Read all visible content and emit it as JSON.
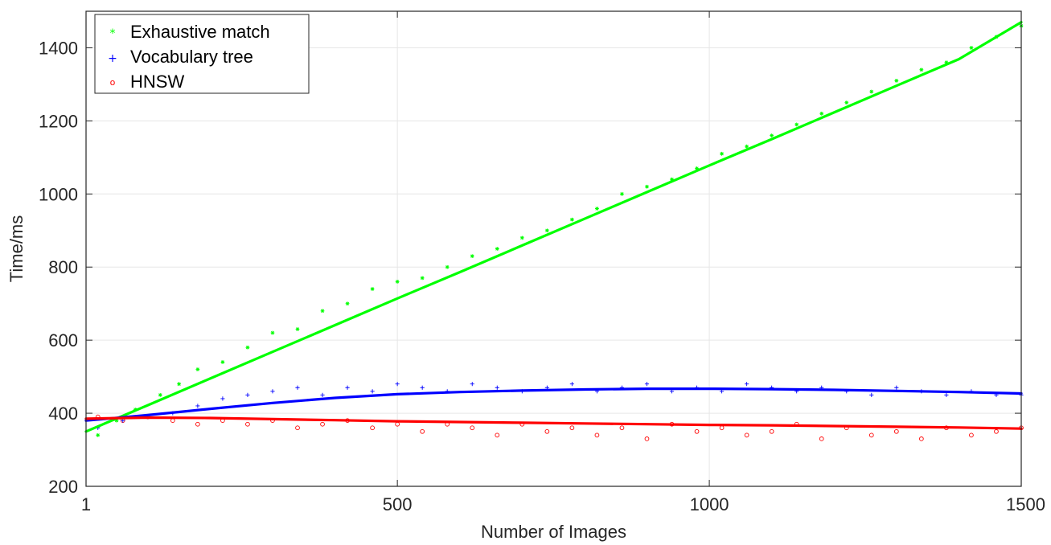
{
  "chart_data": {
    "type": "scatter",
    "title": "",
    "xlabel": "Number of Images",
    "ylabel": "Time/ms",
    "xlim": [
      1,
      1500
    ],
    "ylim": [
      200,
      1500
    ],
    "xticks": [
      1,
      500,
      1000,
      1500
    ],
    "xtick_labels": [
      "1",
      "500",
      "1000",
      "1500"
    ],
    "yticks": [
      200,
      400,
      600,
      800,
      1000,
      1200,
      1400
    ],
    "ytick_labels": [
      "200",
      "400",
      "600",
      "800",
      "1000",
      "1200",
      "1400"
    ],
    "grid": true,
    "legend_position": "top-left",
    "series": [
      {
        "name": "Exhaustive match",
        "marker": "*",
        "color": "#00ff00",
        "trend_color": "#00ff00",
        "trend_x": [
          1,
          100,
          200,
          300,
          400,
          500,
          600,
          700,
          800,
          900,
          1000,
          1100,
          1200,
          1300,
          1400,
          1500
        ],
        "trend_y": [
          350,
          422,
          495,
          568,
          641,
          714,
          786,
          859,
          932,
          1005,
          1078,
          1150,
          1223,
          1296,
          1369,
          1470
        ],
        "points": [
          [
            20,
            340
          ],
          [
            50,
            380
          ],
          [
            80,
            410
          ],
          [
            120,
            450
          ],
          [
            150,
            480
          ],
          [
            180,
            520
          ],
          [
            220,
            540
          ],
          [
            260,
            580
          ],
          [
            300,
            620
          ],
          [
            340,
            630
          ],
          [
            380,
            680
          ],
          [
            420,
            700
          ],
          [
            460,
            740
          ],
          [
            500,
            760
          ],
          [
            540,
            770
          ],
          [
            580,
            800
          ],
          [
            620,
            830
          ],
          [
            660,
            850
          ],
          [
            700,
            880
          ],
          [
            740,
            900
          ],
          [
            780,
            930
          ],
          [
            820,
            960
          ],
          [
            860,
            1000
          ],
          [
            900,
            1020
          ],
          [
            940,
            1040
          ],
          [
            980,
            1070
          ],
          [
            1020,
            1110
          ],
          [
            1060,
            1130
          ],
          [
            1100,
            1160
          ],
          [
            1140,
            1190
          ],
          [
            1180,
            1220
          ],
          [
            1220,
            1250
          ],
          [
            1260,
            1280
          ],
          [
            1300,
            1310
          ],
          [
            1340,
            1340
          ],
          [
            1380,
            1360
          ],
          [
            1420,
            1400
          ],
          [
            1460,
            1430
          ],
          [
            1500,
            1460
          ]
        ]
      },
      {
        "name": "Vocabulary tree",
        "marker": "+",
        "color": "#0000ff",
        "trend_color": "#0000ff",
        "trend_x": [
          1,
          100,
          200,
          300,
          400,
          500,
          600,
          700,
          800,
          900,
          1000,
          1100,
          1200,
          1300,
          1400,
          1500
        ],
        "trend_y": [
          380,
          395,
          412,
          428,
          442,
          452,
          458,
          462,
          465,
          467,
          467,
          466,
          464,
          461,
          458,
          454
        ],
        "points": [
          [
            20,
            360
          ],
          [
            60,
            380
          ],
          [
            100,
            390
          ],
          [
            140,
            400
          ],
          [
            180,
            420
          ],
          [
            220,
            440
          ],
          [
            260,
            450
          ],
          [
            300,
            460
          ],
          [
            340,
            470
          ],
          [
            380,
            450
          ],
          [
            420,
            470
          ],
          [
            460,
            460
          ],
          [
            500,
            480
          ],
          [
            540,
            470
          ],
          [
            580,
            460
          ],
          [
            620,
            480
          ],
          [
            660,
            470
          ],
          [
            700,
            460
          ],
          [
            740,
            470
          ],
          [
            780,
            480
          ],
          [
            820,
            460
          ],
          [
            860,
            470
          ],
          [
            900,
            480
          ],
          [
            940,
            460
          ],
          [
            980,
            470
          ],
          [
            1020,
            460
          ],
          [
            1060,
            480
          ],
          [
            1100,
            470
          ],
          [
            1140,
            460
          ],
          [
            1180,
            470
          ],
          [
            1220,
            460
          ],
          [
            1260,
            450
          ],
          [
            1300,
            470
          ],
          [
            1340,
            460
          ],
          [
            1380,
            450
          ],
          [
            1420,
            460
          ],
          [
            1460,
            450
          ],
          [
            1500,
            450
          ]
        ]
      },
      {
        "name": "HNSW",
        "marker": "o",
        "color": "#ff0000",
        "trend_color": "#ff0000",
        "trend_x": [
          1,
          100,
          200,
          300,
          400,
          500,
          600,
          700,
          800,
          900,
          1000,
          1100,
          1200,
          1300,
          1400,
          1500
        ],
        "trend_y": [
          385,
          388,
          387,
          384,
          381,
          378,
          376,
          374,
          372,
          370,
          368,
          367,
          365,
          363,
          361,
          358
        ],
        "points": [
          [
            20,
            390
          ],
          [
            60,
            380
          ],
          [
            100,
            390
          ],
          [
            140,
            380
          ],
          [
            180,
            370
          ],
          [
            220,
            380
          ],
          [
            260,
            370
          ],
          [
            300,
            380
          ],
          [
            340,
            360
          ],
          [
            380,
            370
          ],
          [
            420,
            380
          ],
          [
            460,
            360
          ],
          [
            500,
            370
          ],
          [
            540,
            350
          ],
          [
            580,
            370
          ],
          [
            620,
            360
          ],
          [
            660,
            340
          ],
          [
            700,
            370
          ],
          [
            740,
            350
          ],
          [
            780,
            360
          ],
          [
            820,
            340
          ],
          [
            860,
            360
          ],
          [
            900,
            330
          ],
          [
            940,
            370
          ],
          [
            980,
            350
          ],
          [
            1020,
            360
          ],
          [
            1060,
            340
          ],
          [
            1100,
            350
          ],
          [
            1140,
            370
          ],
          [
            1180,
            330
          ],
          [
            1220,
            360
          ],
          [
            1260,
            340
          ],
          [
            1300,
            350
          ],
          [
            1340,
            330
          ],
          [
            1380,
            360
          ],
          [
            1420,
            340
          ],
          [
            1460,
            350
          ],
          [
            1500,
            360
          ]
        ]
      }
    ]
  }
}
